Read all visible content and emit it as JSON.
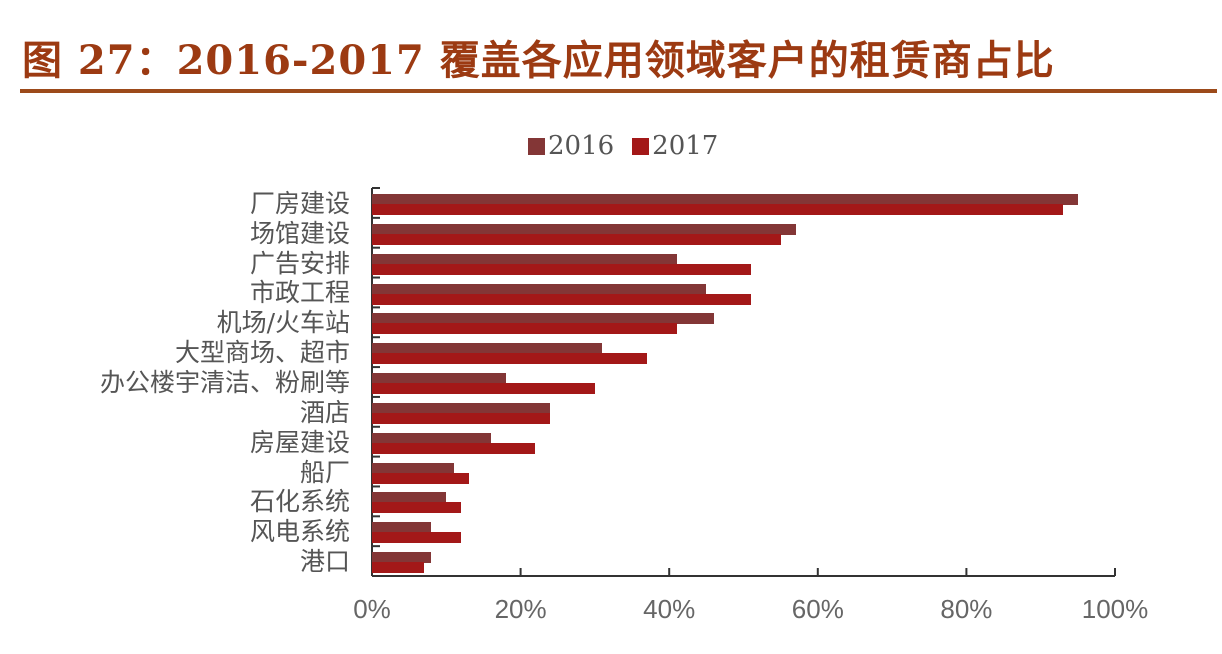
{
  "title": "图 27：2016-2017 覆盖各应用领域客户的租赁商占比",
  "legend": [
    {
      "label": "2016",
      "color": "#833636"
    },
    {
      "label": "2017",
      "color": "#a31818"
    }
  ],
  "x_ticks": [
    "0%",
    "20%",
    "40%",
    "60%",
    "80%",
    "100%"
  ],
  "chart_data": {
    "type": "bar",
    "orientation": "horizontal",
    "title": "2016-2017 覆盖各应用领域客户的租赁商占比",
    "xlabel": "",
    "ylabel": "",
    "xlim": [
      0,
      100
    ],
    "x_tick_labels": [
      "0%",
      "20%",
      "40%",
      "60%",
      "80%",
      "100%"
    ],
    "legend_position": "top",
    "grid": false,
    "categories": [
      "厂房建设",
      "场馆建设",
      "广告安排",
      "市政工程",
      "机场/火车站",
      "大型商场、超市",
      "办公楼宇清洁、粉刷等",
      "酒店",
      "房屋建设",
      "船厂",
      "石化系统",
      "风电系统",
      "港口"
    ],
    "series": [
      {
        "name": "2016",
        "color": "#833636",
        "values": [
          95,
          57,
          41,
          45,
          46,
          31,
          18,
          24,
          16,
          11,
          10,
          8,
          8
        ]
      },
      {
        "name": "2017",
        "color": "#a31818",
        "values": [
          93,
          55,
          51,
          51,
          41,
          37,
          30,
          24,
          22,
          13,
          12,
          12,
          7
        ]
      }
    ]
  }
}
